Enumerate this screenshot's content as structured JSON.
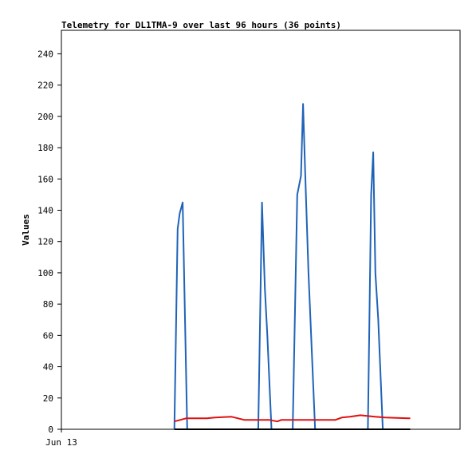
{
  "chart_data": {
    "type": "line",
    "title": "Telemetry for DL1TMA-9 over last 96 hours (36 points)",
    "xlabel": "",
    "ylabel": "Values",
    "x_tick_labels": [
      "Jun 13"
    ],
    "ylim": [
      0,
      255
    ],
    "yticks": [
      0,
      20,
      40,
      60,
      80,
      100,
      120,
      140,
      160,
      180,
      200,
      220,
      240
    ],
    "grid": false,
    "legend": "none",
    "xlim_hours": [
      0,
      96
    ],
    "series": [
      {
        "color": "#1f63b8",
        "x": [
          27.2,
          28.0,
          28.5,
          29.2,
          30.3,
          47.4,
          48.3,
          49.0,
          49.6,
          50.6,
          55.7,
          56.8,
          57.7,
          58.2,
          58.7,
          59.5,
          61.1,
          73.8,
          74.6,
          75.1,
          75.6,
          76.3,
          77.4
        ],
        "values": [
          0,
          128,
          138,
          145,
          0,
          0,
          145,
          90,
          60,
          0,
          0,
          150,
          162,
          208,
          165,
          100,
          0,
          0,
          150,
          177,
          100,
          70,
          0
        ]
      },
      {
        "color": "#e01010",
        "x": [
          27.2,
          30.0,
          35.0,
          37.0,
          41.0,
          44.0,
          50.0,
          52.0,
          53.0,
          60.0,
          66.0,
          67.5,
          69.5,
          72.0,
          75.5,
          78.0,
          84.0
        ],
        "values": [
          5,
          7,
          7,
          7.5,
          8,
          6,
          6,
          5,
          6,
          6,
          6,
          7.5,
          8,
          9,
          8,
          7.5,
          7
        ]
      },
      {
        "color": "#000000",
        "x": [
          27.2,
          84.0
        ],
        "values": [
          0,
          0
        ]
      }
    ]
  }
}
